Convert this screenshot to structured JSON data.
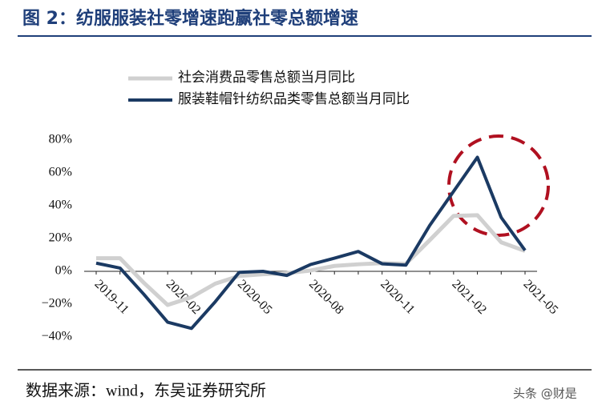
{
  "chart_data": {
    "type": "line",
    "title": "图 2：纺服服装社零增速跑赢社零总额增速",
    "source": "数据来源：wind，东吴证券研究所",
    "watermark": "头条 @财是",
    "categories": [
      "2019-11",
      null,
      null,
      "2020-02",
      null,
      null,
      "2020-05",
      null,
      null,
      "2020-08",
      null,
      null,
      "2020-11",
      null,
      null,
      "2021-02",
      null,
      null,
      "2021-05"
    ],
    "series": [
      {
        "name": "社会消费品零售总额当月同比",
        "color": "#d0d0d0",
        "values": [
          8,
          8,
          -7,
          -20.5,
          -15.8,
          -7.5,
          -2.8,
          -1.8,
          -1.1,
          0.5,
          3.3,
          4.3,
          5,
          4.6,
          19,
          33.8,
          34.2,
          17.7,
          12.4
        ]
      },
      {
        "name": "服装鞋帽针纺织品类零售总额当月同比",
        "color": "#1b3a63",
        "values": [
          5,
          2,
          -14,
          -31,
          -34.8,
          -18.5,
          -0.6,
          0,
          -2.5,
          4.2,
          8,
          12.1,
          4.6,
          3.8,
          28,
          48.7,
          69.5,
          32.8,
          12.8
        ]
      }
    ],
    "ylim": [
      -40,
      80
    ],
    "yticks": [
      {
        "value": -40,
        "label": "−40%"
      },
      {
        "value": -20,
        "label": "−20%"
      },
      {
        "value": 0,
        "label": "0%"
      },
      {
        "value": 20,
        "label": "20%"
      },
      {
        "value": 40,
        "label": "40%"
      },
      {
        "value": 60,
        "label": "60%"
      },
      {
        "value": 80,
        "label": "80%"
      }
    ],
    "grid": false
  }
}
